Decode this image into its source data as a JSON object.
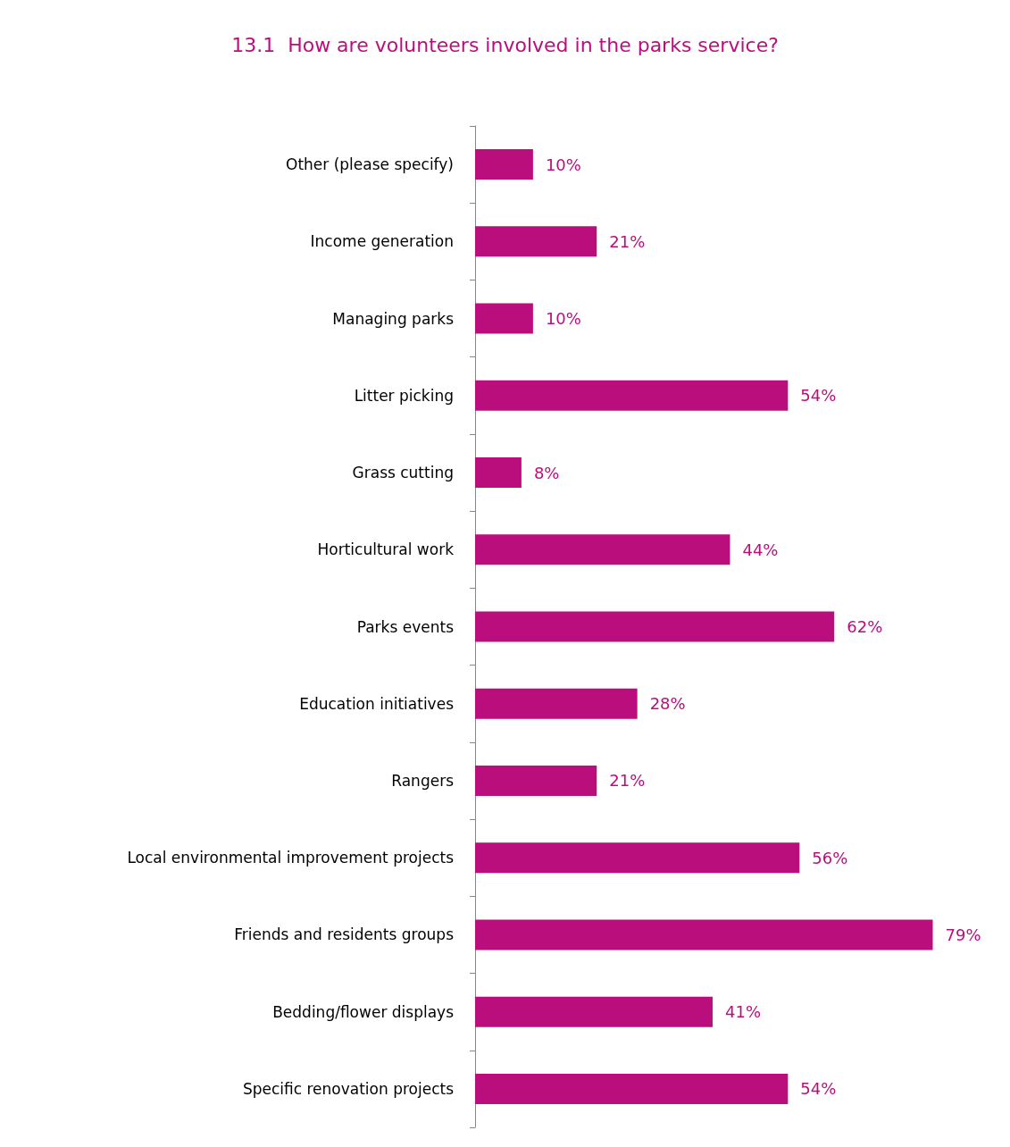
{
  "chart_data": {
    "type": "bar",
    "orientation": "horizontal",
    "title": "13.1  How are volunteers involved in the parks service?",
    "categories": [
      "Other (please specify)",
      "Income generation",
      "Managing parks",
      "Litter picking",
      "Grass cutting",
      "Horticultural work",
      "Parks events",
      "Education initiatives",
      "Rangers",
      "Local environmental improvement projects",
      "Friends and residents groups",
      "Bedding/flower displays",
      "Specific renovation projects"
    ],
    "values": [
      10,
      21,
      10,
      54,
      8,
      44,
      62,
      28,
      21,
      56,
      79,
      41,
      54
    ],
    "value_labels": [
      "10%",
      "21%",
      "10%",
      "54%",
      "8%",
      "44%",
      "62%",
      "28%",
      "21%",
      "56%",
      "79%",
      "41%",
      "54%"
    ],
    "color": "#bb0e7d"
  }
}
